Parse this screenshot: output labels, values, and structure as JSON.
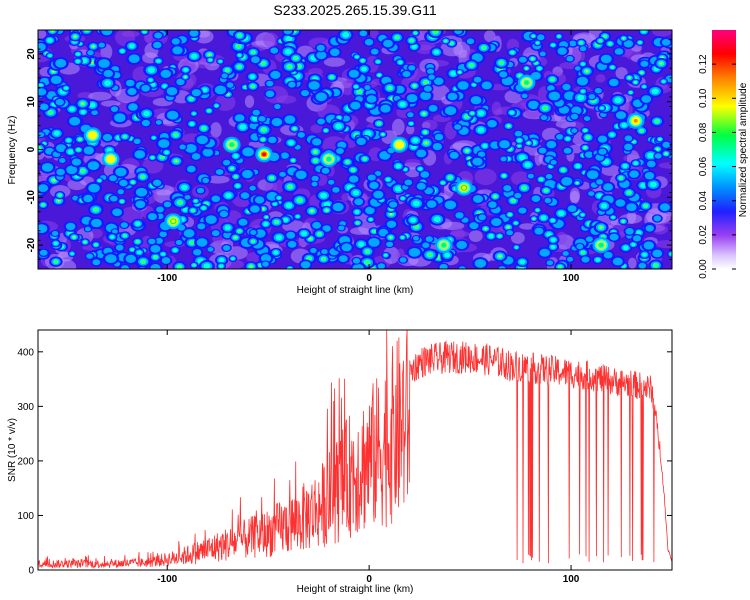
{
  "title": "S233.2025.265.15.39.G11",
  "chart_data": [
    {
      "type": "heatmap",
      "xlabel": "Height of straight line (km)",
      "ylabel": "Frequency (Hz)",
      "xlim": [
        -164,
        150
      ],
      "ylim": [
        -25,
        25
      ],
      "xticks": [
        -100,
        0,
        100
      ],
      "yticks": [
        -20,
        -10,
        0,
        10,
        20
      ],
      "colorbar": {
        "label": "Normalized spectral amplitude",
        "range": [
          0.0,
          0.14
        ],
        "ticks": [
          "0.00",
          "0.02",
          "0.04",
          "0.06",
          "0.08",
          "0.10",
          "0.12"
        ],
        "colors": [
          "#ffffff",
          "#c8a0ff",
          "#8020e0",
          "#0000ff",
          "#00a0ff",
          "#00ffff",
          "#00ff40",
          "#ffff00",
          "#ff8000",
          "#ff0000",
          "#ff0080"
        ]
      },
      "hotspots": [
        {
          "x": -52,
          "y": -1,
          "v": 0.13
        },
        {
          "x": -137,
          "y": 3,
          "v": 0.11
        },
        {
          "x": -128,
          "y": -2,
          "v": 0.11
        },
        {
          "x": 15,
          "y": 1,
          "v": 0.11
        },
        {
          "x": 132,
          "y": 6,
          "v": 0.12
        },
        {
          "x": 47,
          "y": -8,
          "v": 0.1
        },
        {
          "x": -97,
          "y": -15,
          "v": 0.1
        },
        {
          "x": 37,
          "y": -20,
          "v": 0.09
        },
        {
          "x": 115,
          "y": -20,
          "v": 0.09
        },
        {
          "x": -20,
          "y": -2,
          "v": 0.09
        },
        {
          "x": -68,
          "y": 1,
          "v": 0.09
        },
        {
          "x": 78,
          "y": 14,
          "v": 0.09
        }
      ]
    },
    {
      "type": "line",
      "xlabel": "Height of straight line (km)",
      "ylabel": "SNR (10 * v/v)",
      "xlim": [
        -164,
        150
      ],
      "ylim": [
        0,
        440
      ],
      "xticks": [
        -100,
        0,
        100
      ],
      "yticks": [
        0,
        100,
        200,
        300,
        400
      ],
      "color": "#ff3030",
      "envelope": {
        "x": [
          -164,
          -130,
          -110,
          -95,
          -80,
          -65,
          -50,
          -35,
          -25,
          -15,
          -8,
          0,
          5,
          10,
          18,
          25,
          30,
          40,
          50,
          60,
          70,
          80,
          90,
          100,
          110,
          120,
          130,
          140,
          145,
          148,
          150
        ],
        "y": [
          15,
          15,
          18,
          30,
          50,
          70,
          90,
          120,
          150,
          200,
          240,
          270,
          290,
          320,
          365,
          390,
          395,
          400,
          400,
          395,
          385,
          380,
          375,
          370,
          365,
          355,
          350,
          340,
          200,
          40,
          15
        ]
      },
      "dropouts_start": 68,
      "dropouts_end": 146
    }
  ]
}
